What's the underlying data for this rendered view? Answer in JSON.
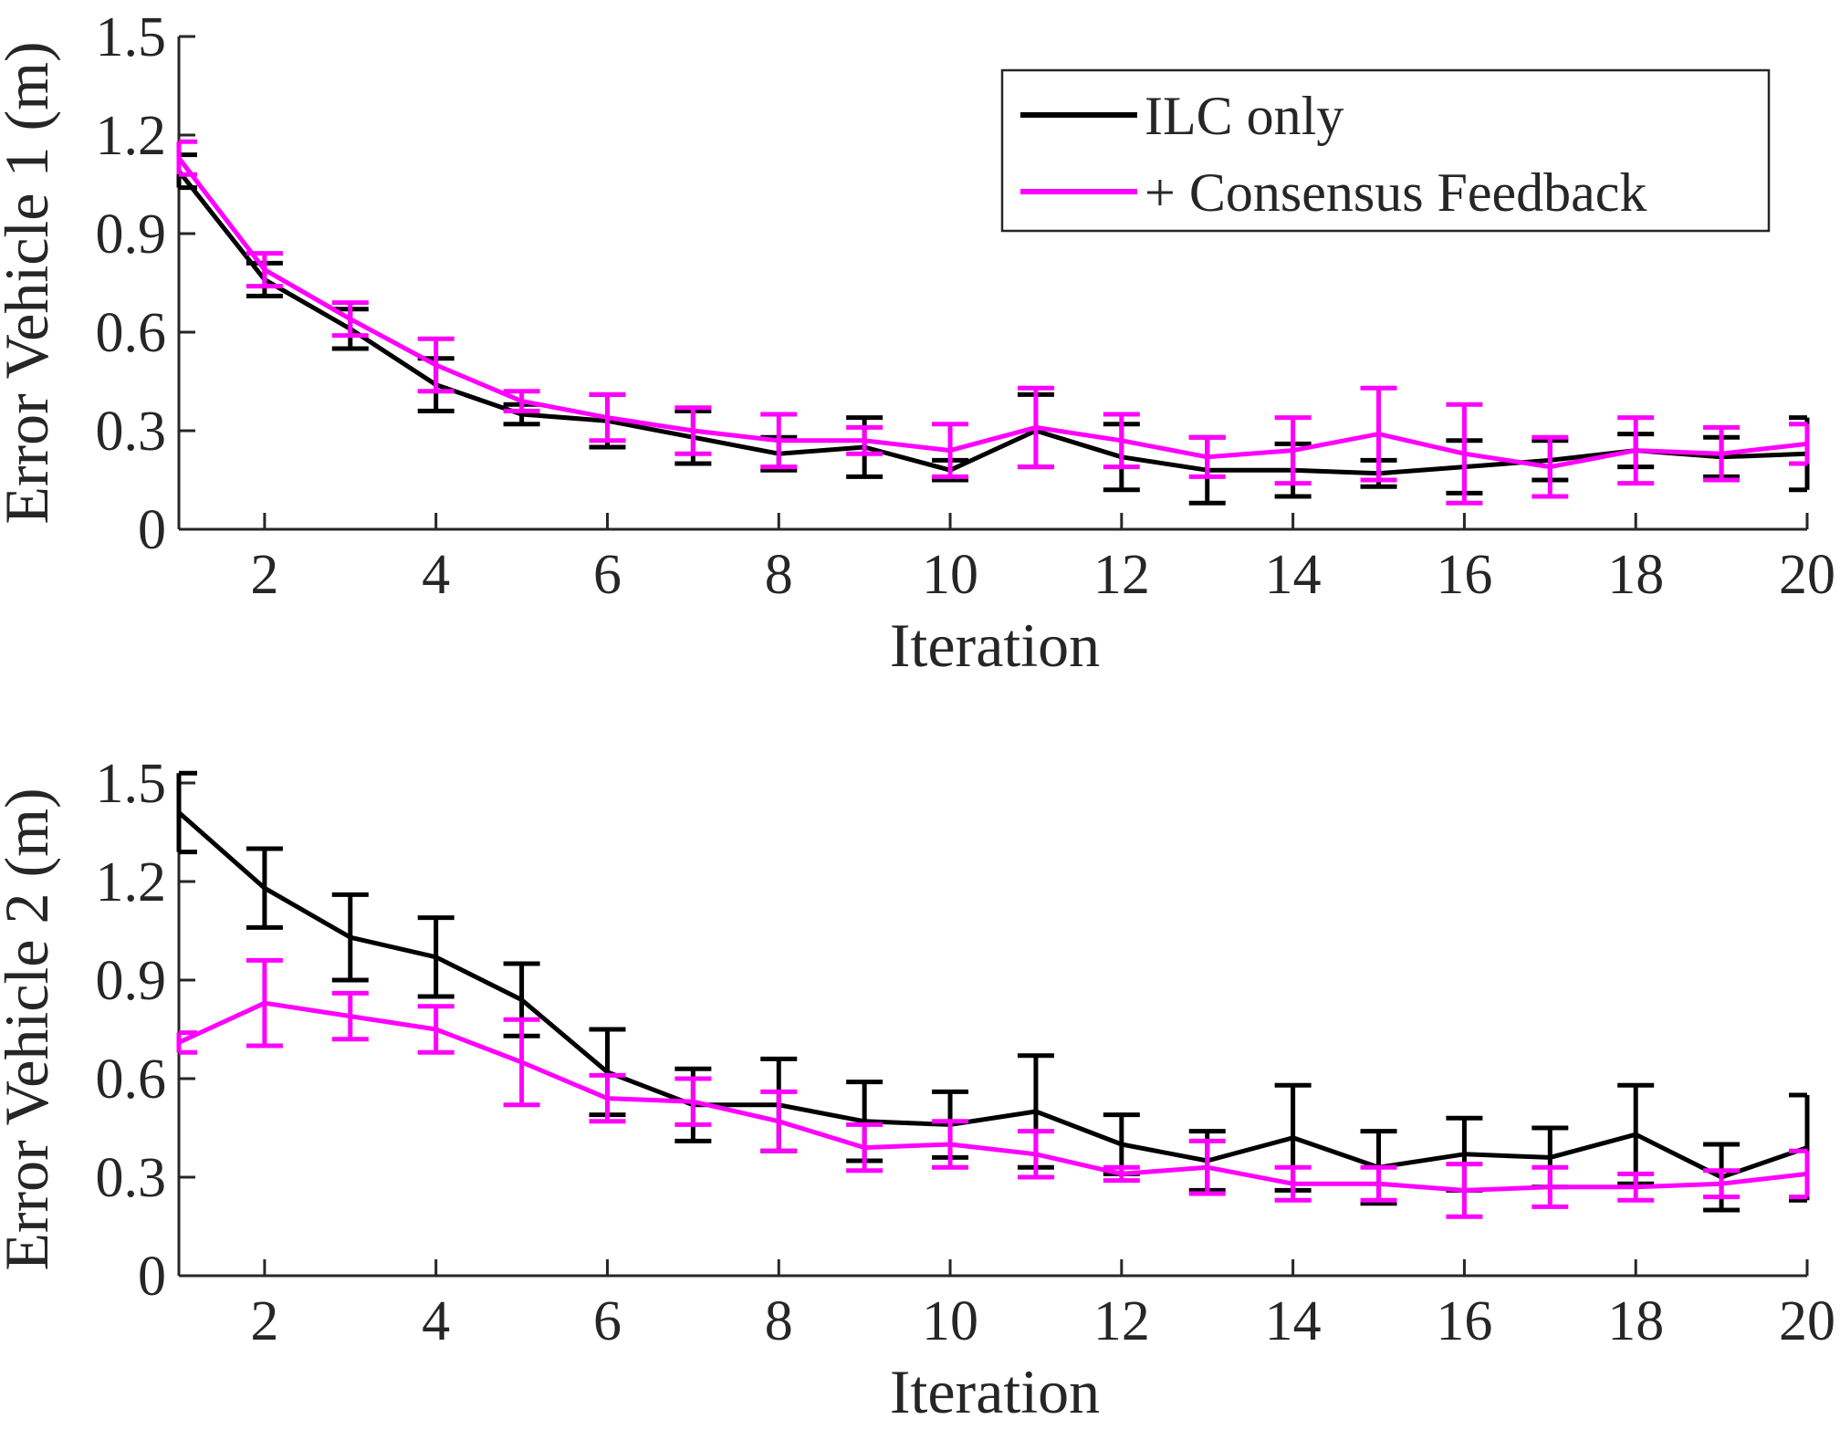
{
  "colors": {
    "ilc": "#000000",
    "consensus": "#ff00ff",
    "axis": "#262626",
    "background": "#ffffff"
  },
  "legend": {
    "items": [
      {
        "label": "ILC only",
        "series": "ilc"
      },
      {
        "label": "+ Consensus Feedback",
        "series": "consensus"
      }
    ],
    "placement": "top-right of upper panel"
  },
  "chart_data": [
    {
      "type": "line",
      "subtype": "errorbar",
      "xlabel": "Iteration",
      "ylabel": "Error Vehicle 1 (m)",
      "xlim": [
        1,
        20
      ],
      "ylim": [
        0,
        1.5
      ],
      "xticks": [
        2,
        4,
        6,
        8,
        10,
        12,
        14,
        16,
        18,
        20
      ],
      "yticks": [
        0,
        0.3,
        0.6,
        0.9,
        1.2,
        1.5
      ],
      "xtick_labels": [
        "2",
        "4",
        "6",
        "8",
        "10",
        "12",
        "14",
        "16",
        "18",
        "20"
      ],
      "ytick_labels": [
        "0",
        "0.3",
        "0.6",
        "0.9",
        "1.2",
        "1.5"
      ],
      "grid": false,
      "x": [
        1,
        2,
        3,
        4,
        5,
        6,
        7,
        8,
        9,
        10,
        11,
        12,
        13,
        14,
        15,
        16,
        17,
        18,
        19,
        20
      ],
      "series": [
        {
          "name": "ILC only",
          "key": "ilc",
          "values": [
            1.09,
            0.76,
            0.61,
            0.44,
            0.35,
            0.33,
            0.28,
            0.23,
            0.25,
            0.18,
            0.3,
            0.22,
            0.18,
            0.18,
            0.17,
            0.19,
            0.21,
            0.24,
            0.22,
            0.23
          ],
          "error": [
            0.05,
            0.05,
            0.06,
            0.08,
            0.03,
            0.08,
            0.08,
            0.05,
            0.09,
            0.03,
            0.11,
            0.1,
            0.1,
            0.08,
            0.04,
            0.08,
            0.06,
            0.05,
            0.06,
            0.11
          ]
        },
        {
          "name": "+ Consensus Feedback",
          "key": "consensus",
          "values": [
            1.13,
            0.79,
            0.64,
            0.5,
            0.39,
            0.34,
            0.3,
            0.27,
            0.27,
            0.24,
            0.31,
            0.27,
            0.22,
            0.24,
            0.29,
            0.23,
            0.19,
            0.24,
            0.23,
            0.26
          ],
          "error": [
            0.05,
            0.05,
            0.05,
            0.08,
            0.03,
            0.07,
            0.07,
            0.08,
            0.04,
            0.08,
            0.12,
            0.08,
            0.06,
            0.1,
            0.14,
            0.15,
            0.09,
            0.1,
            0.08,
            0.06
          ]
        }
      ]
    },
    {
      "type": "line",
      "subtype": "errorbar",
      "xlabel": "Iteration",
      "ylabel": "Error Vehicle 2 (m)",
      "xlim": [
        1,
        20
      ],
      "ylim": [
        0,
        1.5
      ],
      "xticks": [
        2,
        4,
        6,
        8,
        10,
        12,
        14,
        16,
        18,
        20
      ],
      "yticks": [
        0,
        0.3,
        0.6,
        0.9,
        1.2,
        1.5
      ],
      "xtick_labels": [
        "2",
        "4",
        "6",
        "8",
        "10",
        "12",
        "14",
        "16",
        "18",
        "20"
      ],
      "ytick_labels": [
        "0",
        "0.3",
        "0.6",
        "0.9",
        "1.2",
        "1.5"
      ],
      "grid": false,
      "x": [
        1,
        2,
        3,
        4,
        5,
        6,
        7,
        8,
        9,
        10,
        11,
        12,
        13,
        14,
        15,
        16,
        17,
        18,
        19,
        20
      ],
      "series": [
        {
          "name": "ILC only",
          "key": "ilc",
          "values": [
            1.41,
            1.18,
            1.03,
            0.97,
            0.84,
            0.62,
            0.52,
            0.52,
            0.47,
            0.46,
            0.5,
            0.4,
            0.35,
            0.42,
            0.33,
            0.37,
            0.36,
            0.43,
            0.3,
            0.39
          ],
          "error": [
            0.12,
            0.12,
            0.13,
            0.12,
            0.11,
            0.13,
            0.11,
            0.14,
            0.12,
            0.1,
            0.17,
            0.09,
            0.09,
            0.16,
            0.11,
            0.11,
            0.09,
            0.15,
            0.1,
            0.16
          ]
        },
        {
          "name": "+ Consensus Feedback",
          "key": "consensus",
          "values": [
            0.71,
            0.83,
            0.79,
            0.75,
            0.65,
            0.54,
            0.53,
            0.47,
            0.39,
            0.4,
            0.37,
            0.31,
            0.33,
            0.28,
            0.28,
            0.26,
            0.27,
            0.27,
            0.28,
            0.31
          ],
          "error": [
            0.03,
            0.13,
            0.07,
            0.07,
            0.13,
            0.07,
            0.07,
            0.09,
            0.07,
            0.07,
            0.07,
            0.02,
            0.08,
            0.05,
            0.05,
            0.08,
            0.06,
            0.04,
            0.04,
            0.07
          ]
        }
      ]
    }
  ]
}
